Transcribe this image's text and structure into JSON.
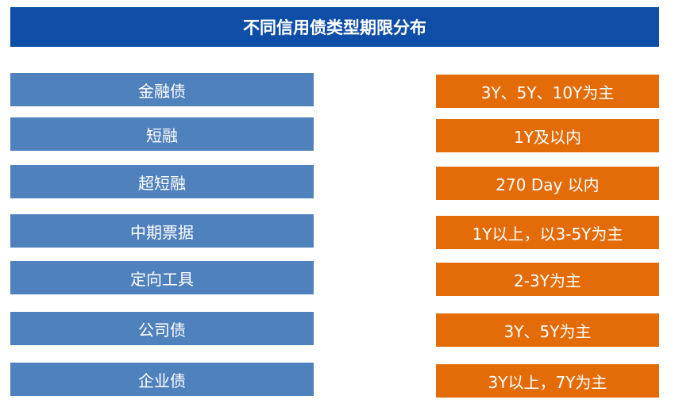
{
  "title": "不同信用债类型期限分布",
  "colors": {
    "title_bg": "#0f4ea7",
    "left_bg": "#4f81bd",
    "right_bg": "#e36c09",
    "text": "#ffffff"
  },
  "rows": [
    {
      "type": "金融债",
      "term": "3Y、5Y、10Y为主"
    },
    {
      "type": "短融",
      "term": "1Y及以内"
    },
    {
      "type": "超短融",
      "term": "270 Day 以内"
    },
    {
      "type": "中期票据",
      "term": "1Y以上，以3-5Y为主"
    },
    {
      "type": "定向工具",
      "term": "2-3Y为主"
    },
    {
      "type": "公司债",
      "term": "3Y、5Y为主"
    },
    {
      "type": "企业债",
      "term": "3Y以上，7Y为主"
    }
  ]
}
